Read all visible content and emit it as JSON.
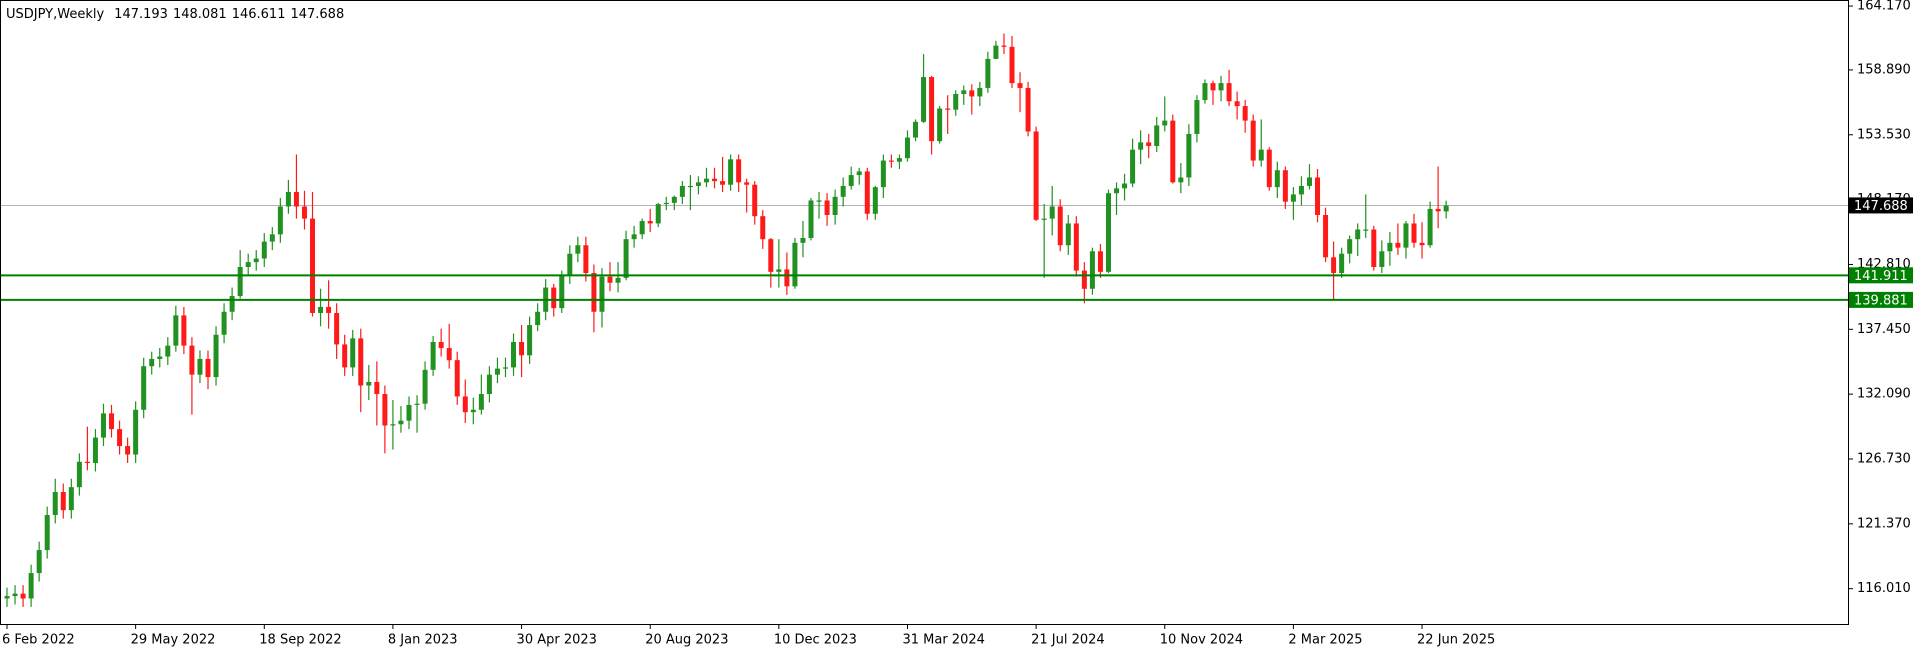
{
  "chart_data": {
    "type": "candlestick",
    "symbol": "USDJPY,Weekly",
    "up_color": "#219121",
    "down_color": "#ff1a1a",
    "price_line_color": "#b4b4b4",
    "categories": [
      "6 Feb 2022",
      null,
      null,
      null,
      null,
      null,
      null,
      null,
      null,
      null,
      null,
      null,
      null,
      null,
      null,
      null,
      "29 May 2022",
      null,
      null,
      null,
      null,
      null,
      null,
      null,
      null,
      null,
      null,
      null,
      null,
      null,
      null,
      null,
      "18 Sep 2022",
      null,
      null,
      null,
      null,
      null,
      null,
      null,
      null,
      null,
      null,
      null,
      null,
      null,
      null,
      null,
      "8 Jan 2023",
      null,
      null,
      null,
      null,
      null,
      null,
      null,
      null,
      null,
      null,
      null,
      null,
      null,
      null,
      null,
      "30 Apr 2023",
      null,
      null,
      null,
      null,
      null,
      null,
      null,
      null,
      null,
      null,
      null,
      null,
      null,
      null,
      null,
      "20 Aug 2023",
      null,
      null,
      null,
      null,
      null,
      null,
      null,
      null,
      null,
      null,
      null,
      null,
      null,
      null,
      null,
      "10 Dec 2023",
      null,
      null,
      null,
      null,
      null,
      null,
      null,
      null,
      null,
      null,
      null,
      null,
      null,
      null,
      null,
      "31 Mar 2024",
      null,
      null,
      null,
      null,
      null,
      null,
      null,
      null,
      null,
      null,
      null,
      null,
      null,
      null,
      null,
      "21 Jul 2024",
      null,
      null,
      null,
      null,
      null,
      null,
      null,
      null,
      null,
      null,
      null,
      null,
      null,
      null,
      null,
      "10 Nov 2024",
      null,
      null,
      null,
      null,
      null,
      null,
      null,
      null,
      null,
      null,
      null,
      null,
      null,
      null,
      null,
      "2 Mar 2025",
      null,
      null,
      null,
      null,
      null,
      null,
      null,
      null,
      null,
      null,
      null,
      null,
      null,
      null,
      null,
      "22 Jun 2025",
      null,
      null,
      null
    ],
    "open": [
      115.2,
      115.4,
      115.6,
      115.2,
      117.3,
      119.2,
      122.1,
      124.0,
      122.5,
      124.4,
      126.5,
      126.4,
      128.5,
      130.5,
      129.2,
      127.8,
      127.1,
      130.8,
      134.4,
      135.0,
      135.2,
      136.1,
      138.6,
      136.1,
      133.7,
      135.0,
      133.5,
      137.0,
      138.9,
      140.2,
      142.6,
      143.0,
      143.3,
      144.7,
      145.3,
      147.6,
      148.8,
      147.6,
      146.6,
      138.8,
      139.3,
      138.8,
      136.2,
      134.3,
      136.7,
      132.8,
      133.1,
      132.1,
      129.5,
      129.6,
      129.9,
      131.2,
      131.3,
      134.1,
      136.4,
      135.9,
      134.9,
      131.9,
      130.6,
      130.8,
      132.1,
      133.7,
      134.2,
      134.3,
      136.4,
      135.3,
      137.8,
      138.9,
      140.9,
      139.2,
      141.9,
      143.7,
      144.4,
      142.1,
      138.9,
      141.8,
      141.3,
      141.7,
      144.9,
      145.3,
      146.4,
      146.2,
      147.8,
      147.9,
      148.4,
      149.3,
      149.3,
      149.6,
      149.9,
      149.7,
      149.4,
      151.5,
      149.6,
      149.4,
      146.8,
      144.9,
      142.2,
      142.4,
      141.0,
      144.6,
      145.0,
      148.1,
      148.1,
      146.9,
      148.4,
      149.3,
      150.2,
      150.5,
      147.0,
      149.2,
      151.4,
      151.3,
      151.6,
      153.3,
      154.6,
      158.3,
      153.0,
      155.7,
      155.6,
      156.9,
      157.2,
      156.7,
      157.4,
      159.8,
      160.9,
      160.8,
      157.8,
      157.4,
      153.8,
      146.5,
      146.6,
      147.6,
      144.4,
      146.2,
      142.3,
      140.8,
      143.9,
      142.2,
      148.7,
      149.1,
      149.5,
      152.3,
      152.9,
      152.6,
      154.3,
      154.7,
      149.6,
      150.0,
      153.6,
      156.4,
      157.8,
      157.2,
      157.8,
      156.3,
      155.9,
      154.7,
      151.4,
      152.3,
      149.2,
      150.6,
      148.0,
      148.6,
      149.3,
      150.0,
      146.9,
      143.4,
      142.1,
      143.7,
      144.9,
      145.7,
      145.7,
      142.6,
      143.9,
      144.6,
      144.2,
      146.2,
      144.6,
      144.4,
      147.4,
      147.193
    ],
    "high": [
      116.1,
      116.3,
      116.3,
      118.0,
      119.9,
      122.8,
      125.1,
      124.7,
      125.1,
      127.2,
      129.4,
      129.2,
      131.3,
      131.2,
      129.9,
      128.5,
      131.5,
      135.1,
      135.6,
      135.9,
      136.8,
      139.4,
      139.3,
      136.8,
      135.7,
      135.7,
      137.7,
      139.6,
      140.9,
      144.0,
      143.7,
      144.0,
      145.4,
      145.9,
      148.3,
      149.8,
      151.9,
      148.9,
      148.8,
      140.8,
      141.5,
      139.6,
      137.0,
      137.4,
      137.5,
      134.5,
      134.8,
      132.8,
      131.6,
      131.1,
      131.9,
      132.0,
      134.8,
      136.9,
      137.5,
      137.9,
      135.6,
      133.3,
      131.8,
      133.7,
      134.4,
      135.1,
      135.1,
      137.1,
      137.8,
      138.5,
      139.6,
      141.6,
      141.2,
      142.3,
      144.4,
      145.1,
      145.1,
      142.8,
      142.5,
      143.0,
      143.0,
      145.6,
      146.0,
      146.6,
      147.4,
      147.9,
      148.4,
      148.5,
      149.7,
      150.2,
      150.1,
      150.8,
      150.8,
      151.7,
      151.9,
      151.9,
      149.9,
      149.7,
      147.3,
      145.0,
      144.9,
      143.8,
      145.0,
      146.4,
      148.3,
      148.8,
      148.7,
      149.0,
      150.0,
      150.9,
      150.8,
      150.8,
      149.3,
      151.9,
      151.9,
      151.9,
      153.9,
      154.8,
      160.2,
      158.4,
      155.9,
      156.8,
      157.2,
      157.6,
      157.7,
      157.9,
      160.4,
      161.3,
      161.9,
      161.7,
      158.7,
      157.9,
      154.2,
      147.8,
      149.3,
      148.2,
      146.9,
      146.8,
      143.0,
      144.2,
      144.5,
      149.0,
      149.6,
      150.3,
      153.2,
      153.9,
      153.6,
      155.0,
      156.7,
      155.2,
      151.2,
      154.4,
      156.8,
      158.1,
      158.0,
      158.4,
      158.9,
      157.1,
      156.4,
      155.2,
      154.8,
      152.5,
      151.3,
      150.9,
      149.2,
      150.1,
      151.1,
      150.7,
      147.5,
      144.7,
      144.2,
      145.2,
      146.2,
      148.6,
      146.0,
      144.8,
      145.5,
      146.2,
      146.4,
      147.0,
      146.3,
      148.0,
      150.9,
      148.081
    ],
    "low": [
      114.5,
      114.7,
      114.5,
      114.5,
      116.6,
      118.5,
      121.4,
      121.8,
      121.8,
      123.7,
      125.8,
      125.7,
      127.8,
      128.5,
      127.1,
      126.4,
      126.4,
      130.1,
      133.7,
      134.3,
      134.5,
      135.6,
      135.4,
      130.4,
      133.0,
      132.5,
      132.8,
      136.3,
      138.2,
      140.0,
      141.9,
      142.3,
      142.6,
      144.0,
      144.6,
      147.0,
      146.6,
      145.7,
      138.5,
      137.7,
      137.5,
      135.0,
      133.6,
      133.6,
      130.6,
      131.6,
      129.5,
      127.2,
      127.5,
      128.9,
      129.2,
      128.9,
      130.8,
      133.6,
      135.2,
      134.2,
      131.2,
      129.7,
      129.6,
      130.4,
      131.4,
      133.0,
      133.5,
      133.6,
      133.5,
      134.6,
      137.3,
      138.2,
      138.5,
      138.8,
      141.2,
      143.0,
      141.4,
      137.2,
      137.6,
      140.6,
      140.5,
      141.5,
      144.2,
      144.9,
      145.5,
      145.9,
      147.3,
      147.3,
      147.8,
      147.3,
      148.6,
      149.2,
      149.1,
      148.8,
      148.9,
      148.8,
      147.1,
      146.1,
      144.1,
      140.9,
      140.9,
      140.3,
      140.8,
      143.4,
      144.8,
      146.6,
      146.0,
      146.1,
      147.6,
      149.0,
      149.4,
      146.5,
      146.5,
      148.3,
      150.8,
      150.7,
      151.3,
      153.0,
      154.5,
      151.9,
      152.8,
      153.6,
      155.1,
      156.0,
      155.2,
      155.9,
      157.0,
      159.8,
      160.2,
      157.4,
      155.4,
      153.4,
      146.4,
      141.7,
      145.2,
      143.9,
      143.6,
      141.8,
      139.6,
      140.3,
      141.7,
      142.1,
      146.9,
      148.1,
      149.2,
      151.1,
      151.6,
      152.1,
      153.8,
      149.5,
      148.7,
      149.3,
      152.9,
      156.1,
      156.0,
      156.3,
      155.9,
      154.8,
      153.7,
      150.9,
      150.9,
      148.9,
      148.3,
      147.4,
      146.5,
      147.7,
      149.0,
      146.3,
      143.0,
      139.9,
      141.7,
      142.9,
      143.5,
      145.0,
      142.3,
      142.1,
      142.7,
      143.6,
      143.3,
      144.2,
      143.3,
      144.2,
      145.8,
      146.611
    ],
    "close": [
      115.4,
      115.6,
      115.2,
      117.3,
      119.2,
      122.1,
      124.0,
      122.5,
      124.4,
      126.5,
      126.4,
      128.5,
      130.5,
      129.2,
      127.8,
      127.1,
      130.8,
      134.4,
      135.0,
      135.2,
      136.1,
      138.6,
      136.1,
      133.7,
      135.0,
      133.5,
      137.0,
      138.9,
      140.2,
      142.6,
      143.0,
      143.3,
      144.7,
      145.3,
      147.6,
      148.8,
      147.6,
      146.6,
      138.8,
      139.3,
      138.8,
      136.2,
      134.3,
      136.7,
      132.8,
      133.1,
      132.1,
      129.5,
      129.6,
      129.9,
      131.2,
      131.3,
      134.1,
      136.4,
      135.9,
      134.9,
      131.9,
      130.6,
      130.8,
      132.1,
      133.7,
      134.2,
      134.3,
      136.4,
      135.3,
      137.8,
      138.9,
      140.9,
      139.2,
      141.9,
      143.7,
      144.4,
      142.1,
      138.9,
      141.8,
      141.3,
      141.7,
      144.9,
      145.3,
      146.4,
      146.2,
      147.8,
      147.9,
      148.4,
      149.3,
      149.3,
      149.6,
      149.9,
      149.7,
      149.4,
      151.5,
      149.6,
      149.4,
      146.8,
      144.9,
      142.2,
      142.4,
      141.0,
      144.6,
      145.0,
      148.1,
      148.1,
      146.9,
      148.4,
      149.3,
      150.2,
      150.5,
      147.0,
      149.2,
      151.4,
      151.3,
      151.6,
      153.3,
      154.6,
      158.3,
      153.0,
      155.7,
      155.6,
      156.9,
      157.2,
      156.7,
      157.4,
      159.8,
      160.9,
      160.8,
      157.8,
      157.4,
      153.8,
      146.5,
      146.6,
      147.6,
      144.4,
      146.2,
      142.3,
      140.8,
      143.9,
      142.2,
      148.7,
      149.1,
      149.5,
      152.3,
      152.9,
      152.6,
      154.3,
      154.7,
      149.6,
      150.0,
      153.6,
      156.4,
      157.8,
      157.2,
      157.8,
      156.3,
      155.9,
      154.7,
      151.4,
      152.3,
      149.2,
      150.6,
      148.0,
      148.6,
      149.3,
      150.0,
      146.9,
      143.4,
      142.1,
      143.7,
      144.9,
      145.7,
      145.7,
      142.6,
      143.9,
      144.6,
      144.2,
      146.2,
      144.6,
      144.4,
      147.4,
      147.2,
      147.688
    ],
    "levels": [
      {
        "value": 141.911,
        "color": "#008000"
      },
      {
        "value": 139.881,
        "color": "#008000"
      }
    ],
    "ylim": [
      113.09,
      164.67
    ],
    "yticks": [
      {
        "value": 116.01,
        "label": "116.010"
      },
      {
        "value": 121.37,
        "label": "121.370"
      },
      {
        "value": 126.73,
        "label": "126.730"
      },
      {
        "value": 132.09,
        "label": "132.090"
      },
      {
        "value": 137.45,
        "label": "137.450"
      },
      {
        "value": 142.81,
        "label": "142.810"
      },
      {
        "value": 148.17,
        "label": "148.170"
      },
      {
        "value": 153.53,
        "label": "153.530"
      },
      {
        "value": 158.89,
        "label": "158.890"
      },
      {
        "value": 164.17,
        "label": "164.170"
      }
    ]
  }
}
